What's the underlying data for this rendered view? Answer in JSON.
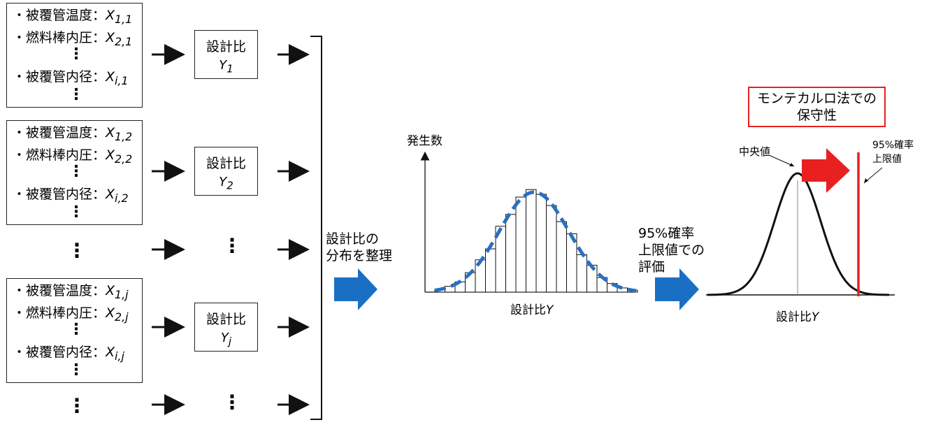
{
  "params": {
    "set1": [
      "・被覆管温度：",
      "X",
      "1,1",
      "・燃料棒内圧：",
      "X",
      "2,1",
      "・被覆管内径：",
      "X",
      "i,1"
    ],
    "set2": [
      "・被覆管温度：",
      "X",
      "1,2",
      "・燃料棒内圧：",
      "X",
      "2,2",
      "・被覆管内径：",
      "X",
      "i,2"
    ],
    "set3": [
      "・被覆管温度：",
      "X",
      "1,j",
      "・燃料棒内圧：",
      "X",
      "2,j",
      "・被覆管内径：",
      "X",
      "i,j"
    ]
  },
  "ratio_boxes": [
    {
      "label": "設計比",
      "var": "Y",
      "sub": "1"
    },
    {
      "label": "設計比",
      "var": "Y",
      "sub": "2"
    },
    {
      "label": "設計比",
      "var": "Y",
      "sub": "j"
    }
  ],
  "step1_label": [
    "設計比の",
    "分布を整理"
  ],
  "hist": {
    "ylabel": "発生数",
    "xlabel": "設計比",
    "xvar": "Y"
  },
  "step2_label": [
    "95%確率",
    "上限値での",
    "評価"
  ],
  "dist": {
    "title": [
      "モンテカルロ法での",
      "保守性"
    ],
    "median_label": "中央値",
    "upper_label": [
      "95%確率",
      "上限値"
    ],
    "xlabel": "設計比",
    "xvar": "Y"
  },
  "colors": {
    "blue": "#1a6fc4",
    "red": "#e82020",
    "curve_blue": "#2a6fc0"
  }
}
